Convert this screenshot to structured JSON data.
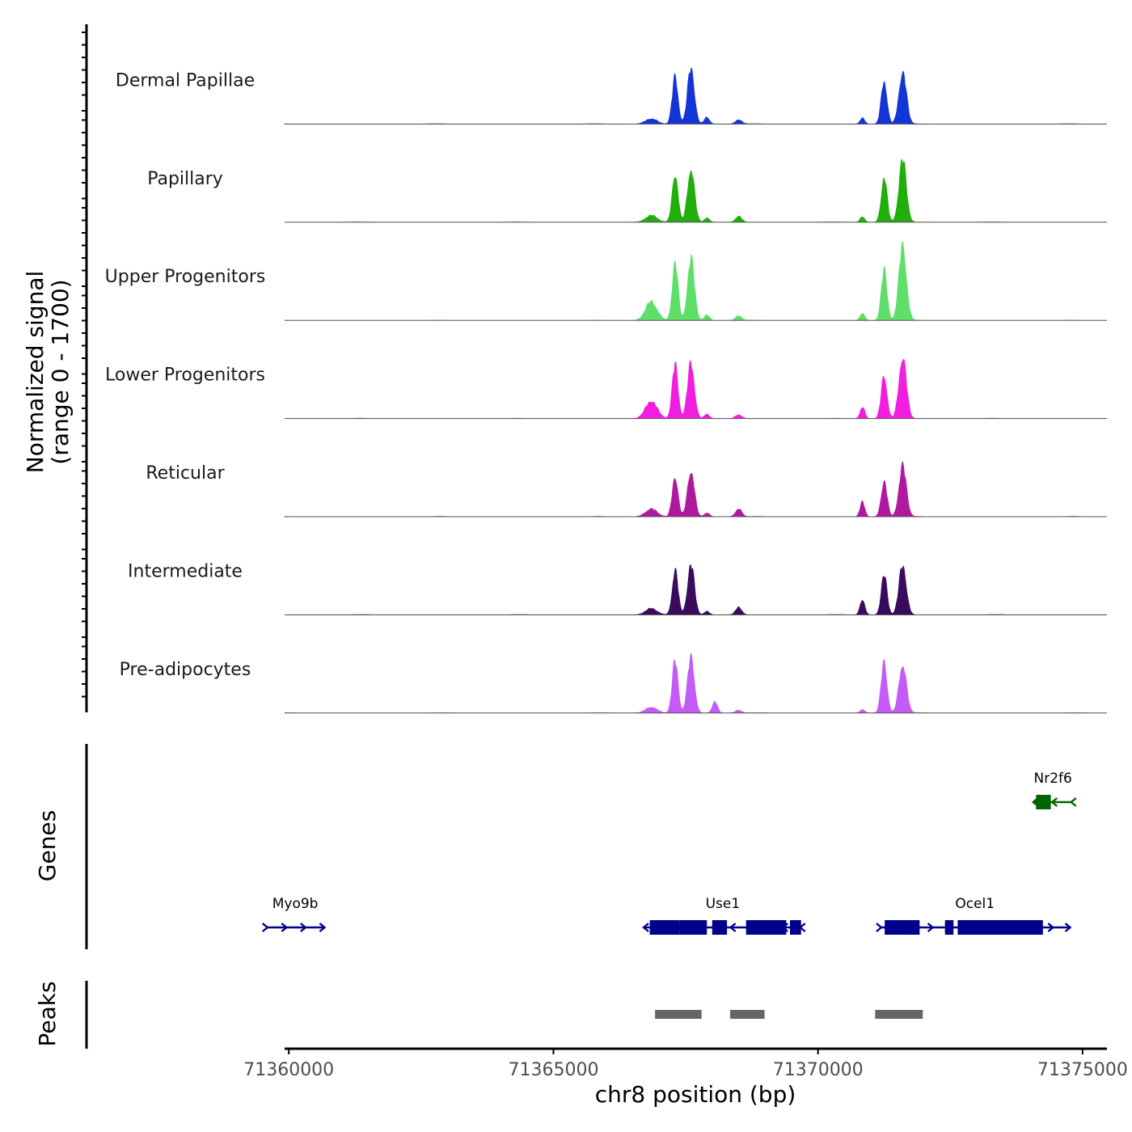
{
  "chart_data": {
    "type": "area",
    "title": "",
    "chromosome": "chr8",
    "xlabel": "chr8 position (bp)",
    "ylabel": "Normalized signal",
    "ylabel_range": "(range 0 - 1700)",
    "ylim": [
      0,
      1700
    ],
    "xlim": [
      71359920,
      71375460
    ],
    "x_ticks": [
      71360000,
      71365000,
      71370000,
      71375000
    ],
    "x_tick_labels": [
      "71360000",
      "71365000",
      "71370000",
      "71375000"
    ],
    "coverage_tracks": [
      {
        "name": "Dermal Papillae",
        "color": "#1435d6",
        "peaks": [
          {
            "position": 71366850,
            "value": 110,
            "width": 110
          },
          {
            "position": 71367300,
            "value": 950,
            "width": 55
          },
          {
            "position": 71367600,
            "value": 1140,
            "width": 65
          },
          {
            "position": 71367900,
            "value": 140,
            "width": 50
          },
          {
            "position": 71368500,
            "value": 90,
            "width": 60
          },
          {
            "position": 71370840,
            "value": 120,
            "width": 45
          },
          {
            "position": 71371250,
            "value": 890,
            "width": 55
          },
          {
            "position": 71371600,
            "value": 1070,
            "width": 70
          }
        ]
      },
      {
        "name": "Papillary",
        "color": "#1fae0a",
        "peaks": [
          {
            "position": 71366850,
            "value": 140,
            "width": 110
          },
          {
            "position": 71367300,
            "value": 990,
            "width": 55
          },
          {
            "position": 71367600,
            "value": 1110,
            "width": 65
          },
          {
            "position": 71367900,
            "value": 90,
            "width": 50
          },
          {
            "position": 71368500,
            "value": 120,
            "width": 60
          },
          {
            "position": 71370840,
            "value": 110,
            "width": 45
          },
          {
            "position": 71371250,
            "value": 920,
            "width": 55
          },
          {
            "position": 71371600,
            "value": 1260,
            "width": 70
          }
        ]
      },
      {
        "name": "Upper Progenitors",
        "color": "#5ddf6a",
        "peaks": [
          {
            "position": 71366850,
            "value": 380,
            "width": 110
          },
          {
            "position": 71367300,
            "value": 1160,
            "width": 55
          },
          {
            "position": 71367600,
            "value": 1240,
            "width": 65
          },
          {
            "position": 71367900,
            "value": 110,
            "width": 50
          },
          {
            "position": 71368500,
            "value": 90,
            "width": 60
          },
          {
            "position": 71370840,
            "value": 150,
            "width": 45
          },
          {
            "position": 71371250,
            "value": 1000,
            "width": 55
          },
          {
            "position": 71371600,
            "value": 1530,
            "width": 70
          }
        ]
      },
      {
        "name": "Lower Progenitors",
        "color": "#f11ee0",
        "peaks": [
          {
            "position": 71366850,
            "value": 360,
            "width": 110
          },
          {
            "position": 71367300,
            "value": 1090,
            "width": 55
          },
          {
            "position": 71367600,
            "value": 1120,
            "width": 65
          },
          {
            "position": 71367900,
            "value": 90,
            "width": 50
          },
          {
            "position": 71368500,
            "value": 80,
            "width": 60
          },
          {
            "position": 71370840,
            "value": 230,
            "width": 45
          },
          {
            "position": 71371250,
            "value": 880,
            "width": 55
          },
          {
            "position": 71371600,
            "value": 1280,
            "width": 70
          }
        ]
      },
      {
        "name": "Reticular",
        "color": "#b0189f",
        "peaks": [
          {
            "position": 71366850,
            "value": 160,
            "width": 110
          },
          {
            "position": 71367300,
            "value": 820,
            "width": 55
          },
          {
            "position": 71367600,
            "value": 950,
            "width": 65
          },
          {
            "position": 71367900,
            "value": 80,
            "width": 50
          },
          {
            "position": 71368500,
            "value": 160,
            "width": 60
          },
          {
            "position": 71370840,
            "value": 300,
            "width": 45
          },
          {
            "position": 71371250,
            "value": 730,
            "width": 55
          },
          {
            "position": 71371600,
            "value": 1020,
            "width": 70
          }
        ]
      },
      {
        "name": "Intermediate",
        "color": "#3a0b5c",
        "peaks": [
          {
            "position": 71366850,
            "value": 130,
            "width": 110
          },
          {
            "position": 71367300,
            "value": 900,
            "width": 55
          },
          {
            "position": 71367600,
            "value": 1010,
            "width": 65
          },
          {
            "position": 71367900,
            "value": 70,
            "width": 50
          },
          {
            "position": 71368500,
            "value": 150,
            "width": 60
          },
          {
            "position": 71370840,
            "value": 320,
            "width": 45
          },
          {
            "position": 71371250,
            "value": 800,
            "width": 55
          },
          {
            "position": 71371600,
            "value": 1000,
            "width": 70
          }
        ]
      },
      {
        "name": "Pre-adipocytes",
        "color": "#c55bf7",
        "peaks": [
          {
            "position": 71366850,
            "value": 120,
            "width": 110
          },
          {
            "position": 71367300,
            "value": 1050,
            "width": 55
          },
          {
            "position": 71367600,
            "value": 1120,
            "width": 65
          },
          {
            "position": 71368050,
            "value": 230,
            "width": 50
          },
          {
            "position": 71368500,
            "value": 60,
            "width": 60
          },
          {
            "position": 71370840,
            "value": 70,
            "width": 45
          },
          {
            "position": 71371250,
            "value": 1050,
            "width": 55
          },
          {
            "position": 71371600,
            "value": 1010,
            "width": 70
          }
        ]
      }
    ],
    "genes_track": {
      "label": "Genes",
      "genes": [
        {
          "name": "Myo9b",
          "strand": "+",
          "row": 2,
          "color": "#00008b",
          "start": 71359580,
          "end": 71360660,
          "exons": []
        },
        {
          "name": "Use1",
          "strand": "-",
          "row": 2,
          "color": "#00008b",
          "start": 71366720,
          "end": 71369680,
          "exons": [
            {
              "start": 71366820,
              "end": 71367380
            },
            {
              "start": 71367380,
              "end": 71367900
            },
            {
              "start": 71368000,
              "end": 71368280
            },
            {
              "start": 71368640,
              "end": 71369400
            },
            {
              "start": 71369470,
              "end": 71369680
            }
          ]
        },
        {
          "name": "Ocel1",
          "strand": "+",
          "row": 2,
          "color": "#00008b",
          "start": 71371180,
          "end": 71374750,
          "exons": [
            {
              "start": 71371260,
              "end": 71371920
            },
            {
              "start": 71372400,
              "end": 71372560
            },
            {
              "start": 71372640,
              "end": 71374250
            }
          ]
        },
        {
          "name": "Nr2f6",
          "strand": "-",
          "row": 1,
          "color": "#006400",
          "start": 71374080,
          "end": 71374800,
          "exons": [
            {
              "start": 71374120,
              "end": 71374400
            }
          ]
        }
      ]
    },
    "peaks_track": {
      "label": "Peaks",
      "color": "#666666",
      "regions": [
        {
          "start": 71366920,
          "end": 71367800
        },
        {
          "start": 71368340,
          "end": 71368990
        },
        {
          "start": 71371080,
          "end": 71371980
        }
      ]
    },
    "legend": "none",
    "grid": false
  }
}
